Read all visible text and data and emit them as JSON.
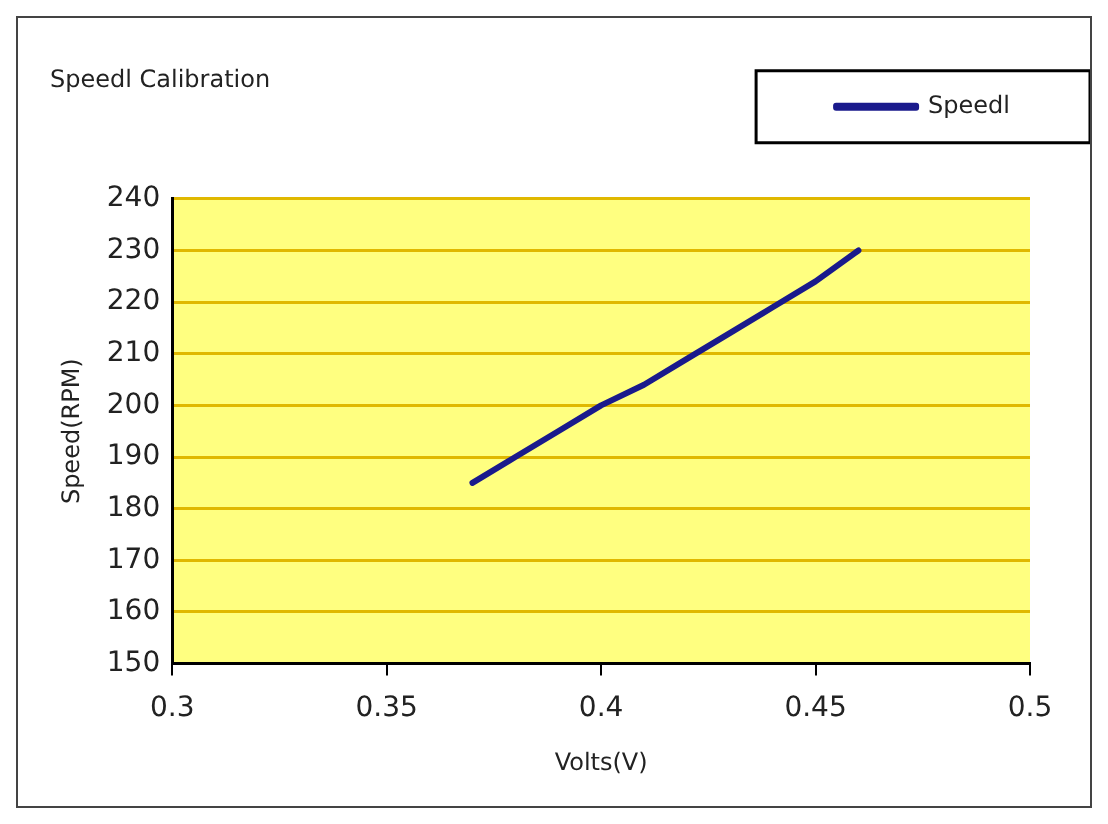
{
  "chart_data": {
    "type": "line",
    "title": "Speedl Calibration",
    "xlabel": "Volts(V)",
    "ylabel": "Speed(RPM)",
    "series": [
      {
        "name": "Speedl",
        "color": "#1a1a8c",
        "x": [
          0.37,
          0.38,
          0.39,
          0.4,
          0.41,
          0.42,
          0.43,
          0.44,
          0.45,
          0.46
        ],
        "values": [
          185,
          190,
          195,
          200,
          204,
          209,
          214,
          219,
          224,
          230
        ]
      }
    ],
    "xlim": [
      0.3,
      0.5
    ],
    "xticks": [
      0.3,
      0.35,
      0.4,
      0.45,
      0.5
    ],
    "ylim": [
      150,
      240
    ],
    "yticks": [
      150,
      160,
      170,
      180,
      190,
      200,
      210,
      220,
      230,
      240
    ],
    "grid": "y",
    "legend": "top right",
    "marker": "none",
    "line_style": "solid"
  }
}
